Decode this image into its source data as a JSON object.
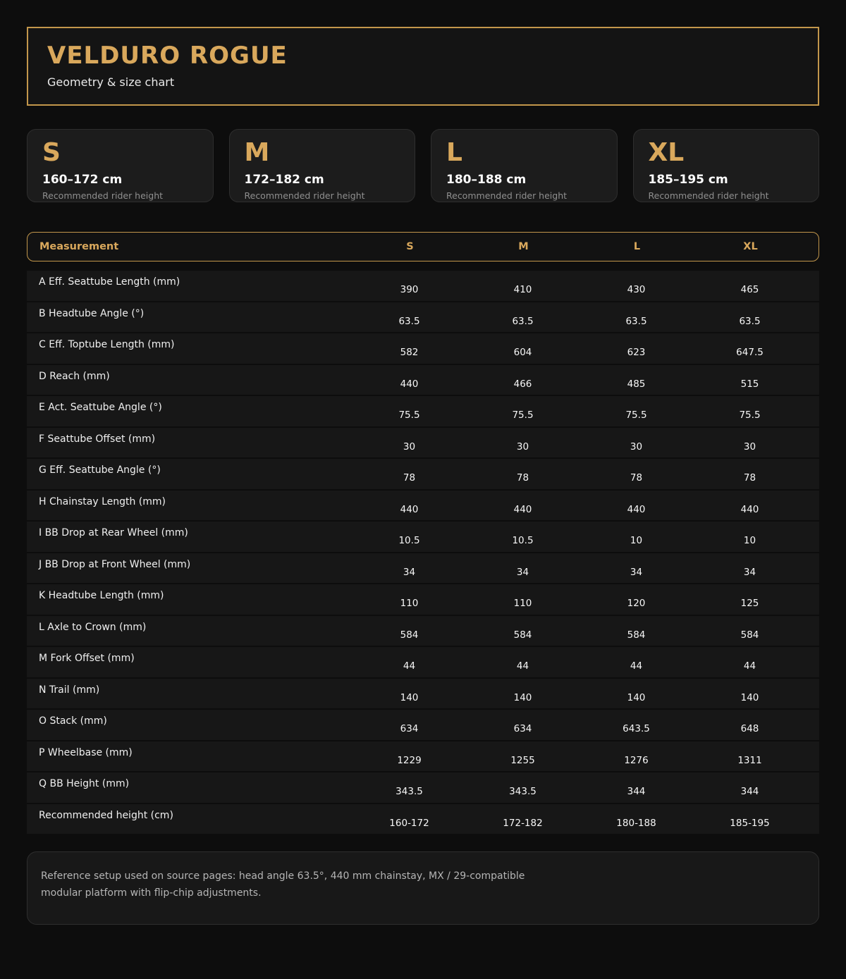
{
  "header": {
    "title": "VELDURO ROGUE",
    "subtitle": "Geometry & size chart"
  },
  "size_cards": [
    {
      "size": "S",
      "height_range": "160–172 cm",
      "caption": "Recommended rider height"
    },
    {
      "size": "M",
      "height_range": "172–182 cm",
      "caption": "Recommended rider height"
    },
    {
      "size": "L",
      "height_range": "180–188 cm",
      "caption": "Recommended rider height"
    },
    {
      "size": "XL",
      "height_range": "185–195 cm",
      "caption": "Recommended rider height"
    }
  ],
  "table": {
    "columns": [
      "Measurement",
      "S",
      "M",
      "L",
      "XL"
    ],
    "rows": [
      {
        "label": "A Eff. Seattube Length (mm)",
        "values": [
          "390",
          "410",
          "430",
          "465"
        ]
      },
      {
        "label": "B Headtube Angle (°)",
        "values": [
          "63.5",
          "63.5",
          "63.5",
          "63.5"
        ]
      },
      {
        "label": "C Eff. Toptube Length (mm)",
        "values": [
          "582",
          "604",
          "623",
          "647.5"
        ]
      },
      {
        "label": "D Reach (mm)",
        "values": [
          "440",
          "466",
          "485",
          "515"
        ]
      },
      {
        "label": "E Act. Seattube Angle (°)",
        "values": [
          "75.5",
          "75.5",
          "75.5",
          "75.5"
        ]
      },
      {
        "label": "F Seattube Offset (mm)",
        "values": [
          "30",
          "30",
          "30",
          "30"
        ]
      },
      {
        "label": "G Eff. Seattube Angle (°)",
        "values": [
          "78",
          "78",
          "78",
          "78"
        ]
      },
      {
        "label": "H Chainstay Length (mm)",
        "values": [
          "440",
          "440",
          "440",
          "440"
        ]
      },
      {
        "label": "I BB Drop at Rear Wheel (mm)",
        "values": [
          "10.5",
          "10.5",
          "10",
          "10"
        ]
      },
      {
        "label": "J BB Drop at Front Wheel (mm)",
        "values": [
          "34",
          "34",
          "34",
          "34"
        ]
      },
      {
        "label": "K Headtube Length (mm)",
        "values": [
          "110",
          "110",
          "120",
          "125"
        ]
      },
      {
        "label": "L Axle to Crown (mm)",
        "values": [
          "584",
          "584",
          "584",
          "584"
        ]
      },
      {
        "label": "M Fork Offset (mm)",
        "values": [
          "44",
          "44",
          "44",
          "44"
        ]
      },
      {
        "label": "N Trail (mm)",
        "values": [
          "140",
          "140",
          "140",
          "140"
        ]
      },
      {
        "label": "O Stack (mm)",
        "values": [
          "634",
          "634",
          "643.5",
          "648"
        ]
      },
      {
        "label": "P Wheelbase (mm)",
        "values": [
          "1229",
          "1255",
          "1276",
          "1311"
        ]
      },
      {
        "label": "Q BB Height (mm)",
        "values": [
          "343.5",
          "343.5",
          "344",
          "344"
        ]
      },
      {
        "label": "Recommended height (cm)",
        "values": [
          "160-172",
          "172-182",
          "180-188",
          "185-195"
        ]
      }
    ]
  },
  "footnote": {
    "line1": "Reference setup used on source pages: head angle 63.5°, 440 mm chainstay, MX / 29-compatible",
    "line2": "modular platform with flip-chip adjustments."
  },
  "colors": {
    "accent_gold": "#d9a85c",
    "border_gold": "#c2964b",
    "page_background": "#0d0d0d",
    "row_background": "#171717",
    "card_background": "#1c1c1c"
  }
}
